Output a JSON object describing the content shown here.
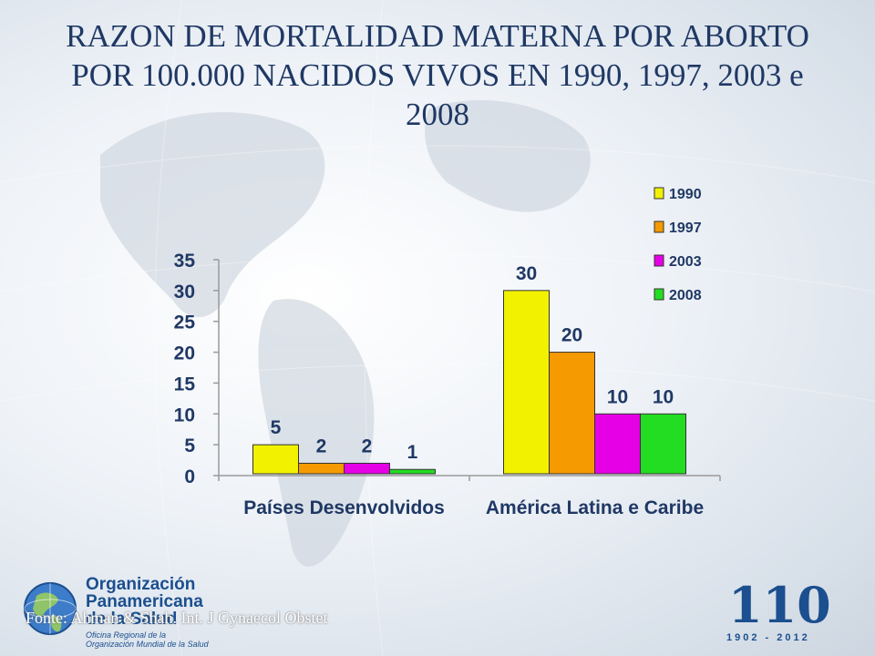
{
  "title": "RAZON DE MORTALIDAD  MATERNA POR ABORTO POR 100.000 NACIDOS VIVOS EN 1990, 1997, 2003 e 2008",
  "source": "Fonte: Ahman & Shah. Int. J Gynaecol Obstet",
  "logo_left": {
    "name_line1": "Organización",
    "name_line2": "Panamericana",
    "name_line3": "de la Salud",
    "sub_line1": "Oficina Regional de la",
    "sub_line2": "Organización Mundial de la Salud"
  },
  "logo_right": {
    "number": "110",
    "years": "1902 - 2012"
  },
  "colors": {
    "title": "#1f3864",
    "s1990": "#f2f200",
    "s1997": "#f59a00",
    "s2003": "#e600e6",
    "s2008": "#22dd22"
  },
  "chart_data": {
    "type": "bar",
    "title": "RAZON DE MORTALIDAD  MATERNA POR ABORTO POR 100.000 NACIDOS VIVOS EN 1990, 1997, 2003 e 2008",
    "categories": [
      "Países Desenvolvidos",
      "América Latina e Caribe"
    ],
    "series": [
      {
        "name": "1990",
        "values": [
          5,
          30
        ]
      },
      {
        "name": "1997",
        "values": [
          2,
          20
        ]
      },
      {
        "name": "2003",
        "values": [
          2,
          10
        ]
      },
      {
        "name": "2008",
        "values": [
          1,
          10
        ]
      }
    ],
    "ylim": [
      0,
      35
    ],
    "yticks": [
      "0",
      "5",
      "10",
      "15",
      "20",
      "25",
      "30",
      "35"
    ],
    "legend": "top-right",
    "grid": false,
    "data_labels": true
  }
}
